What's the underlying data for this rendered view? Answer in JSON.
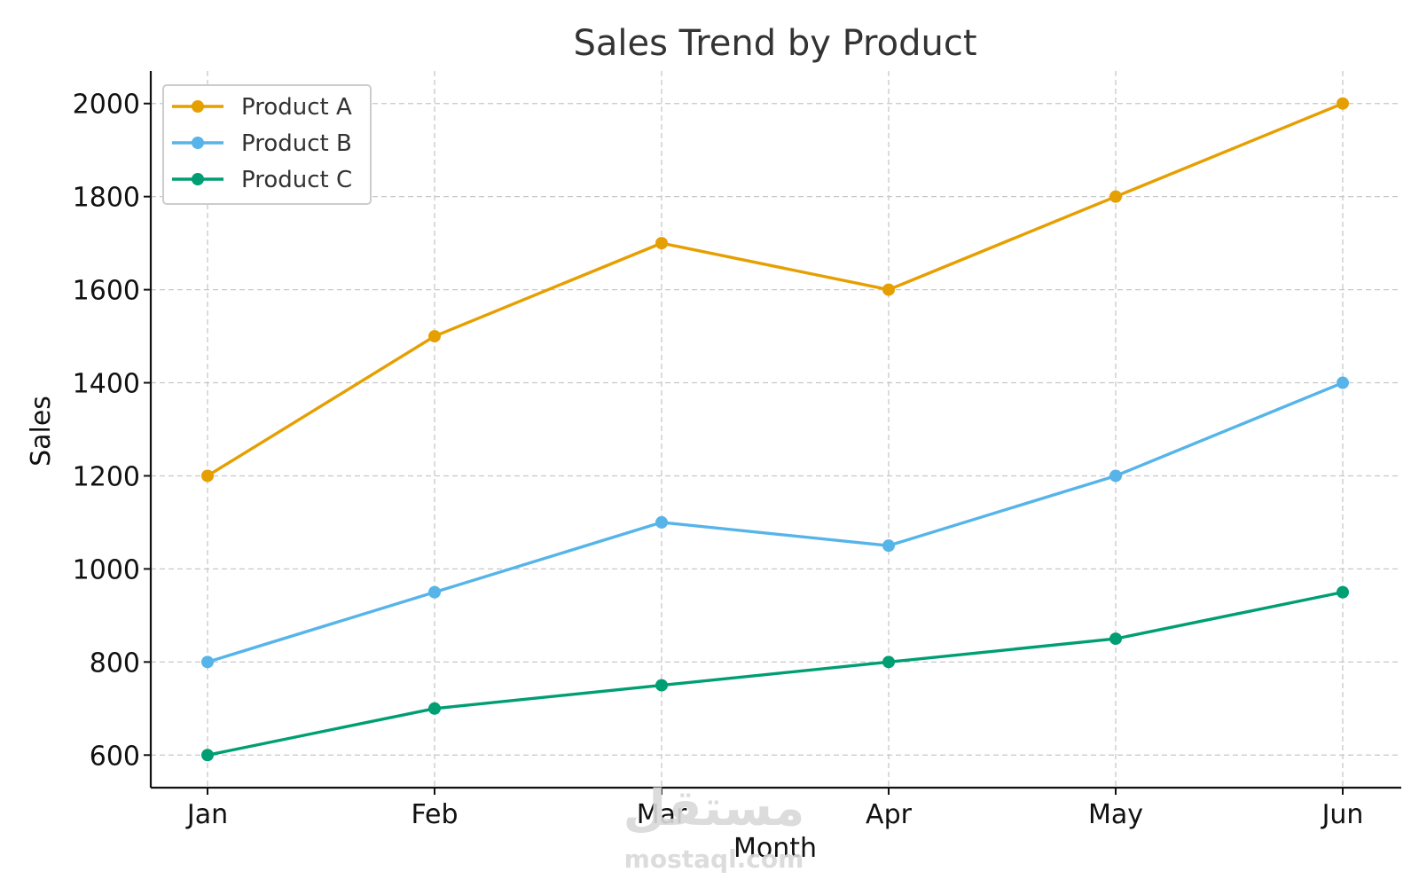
{
  "chart_data": {
    "type": "line",
    "title": "Sales Trend by Product",
    "xlabel": "Month",
    "ylabel": "Sales",
    "categories": [
      "Jan",
      "Feb",
      "Mar",
      "Apr",
      "May",
      "Jun"
    ],
    "series": [
      {
        "name": "Product A",
        "color": "#E69F00",
        "values": [
          1200,
          1500,
          1700,
          1600,
          1800,
          2000
        ]
      },
      {
        "name": "Product B",
        "color": "#56B4E9",
        "values": [
          800,
          950,
          1100,
          1050,
          1200,
          1400
        ]
      },
      {
        "name": "Product C",
        "color": "#009E73",
        "values": [
          600,
          700,
          750,
          800,
          850,
          950
        ]
      }
    ],
    "ylim": [
      530,
      2070
    ],
    "yticks": [
      600,
      800,
      1000,
      1200,
      1400,
      1600,
      1800,
      2000
    ],
    "grid": true,
    "legend_position": "top-left",
    "marker": "circle"
  },
  "watermark": {
    "arabic": "مستقل",
    "latin": "mostaql.com"
  }
}
